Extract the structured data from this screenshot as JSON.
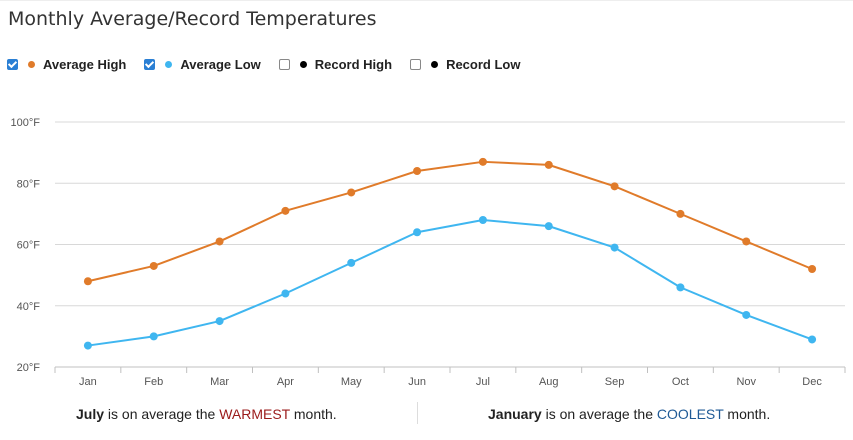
{
  "title": "Monthly Average/Record Temperatures",
  "legend": [
    {
      "label": "Average High",
      "checked": true,
      "color": "#e07b2a"
    },
    {
      "label": "Average Low",
      "checked": true,
      "color": "#3fb6f0"
    },
    {
      "label": "Record High",
      "checked": false,
      "color": "#000000"
    },
    {
      "label": "Record Low",
      "checked": false,
      "color": "#000000"
    }
  ],
  "chart_data": {
    "type": "line",
    "categories": [
      "Jan",
      "Feb",
      "Mar",
      "Apr",
      "May",
      "Jun",
      "Jul",
      "Aug",
      "Sep",
      "Oct",
      "Nov",
      "Dec"
    ],
    "series": [
      {
        "name": "Average High",
        "color": "#e07b2a",
        "values": [
          48,
          53,
          61,
          71,
          77,
          84,
          87,
          86,
          79,
          70,
          61,
          52
        ]
      },
      {
        "name": "Average Low",
        "color": "#3fb6f0",
        "values": [
          27,
          30,
          35,
          44,
          54,
          64,
          68,
          66,
          59,
          46,
          37,
          29
        ]
      }
    ],
    "ylim": [
      20,
      100
    ],
    "yticks": [
      "20°F",
      "40°F",
      "60°F",
      "80°F",
      "100°F"
    ],
    "ytick_values": [
      20,
      40,
      60,
      80,
      100
    ],
    "grid": true
  },
  "footer": {
    "warm_month": "July",
    "warm_pre": " is on average the ",
    "warm_word": "WARMEST",
    "warm_post": " month.",
    "cool_month": "January",
    "cool_pre": " is on average the ",
    "cool_word": "COOLEST",
    "cool_post": " month."
  }
}
